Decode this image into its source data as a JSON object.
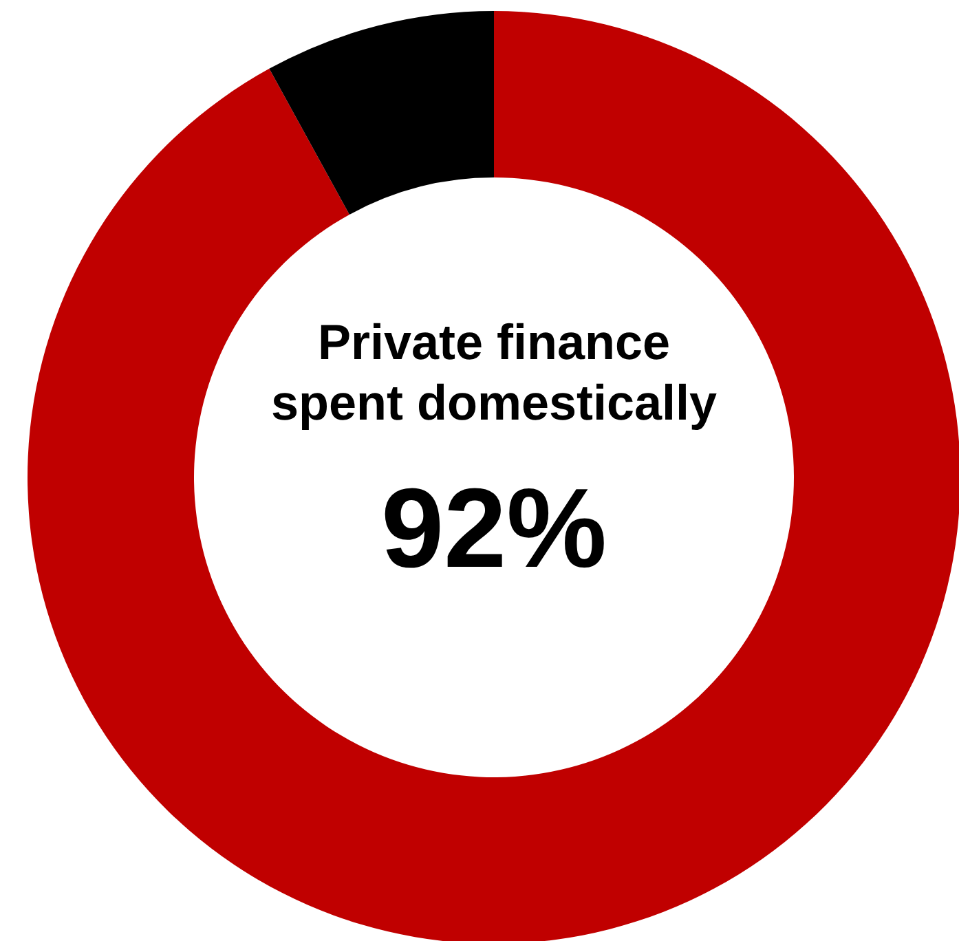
{
  "chart_data": {
    "type": "donut",
    "title": "Private finance spent domestically",
    "categories": [
      null,
      null
    ],
    "values": [
      92,
      8
    ],
    "colors": [
      "#c00000",
      "#000000"
    ],
    "value_labels": [
      "92%",
      null
    ]
  }
}
